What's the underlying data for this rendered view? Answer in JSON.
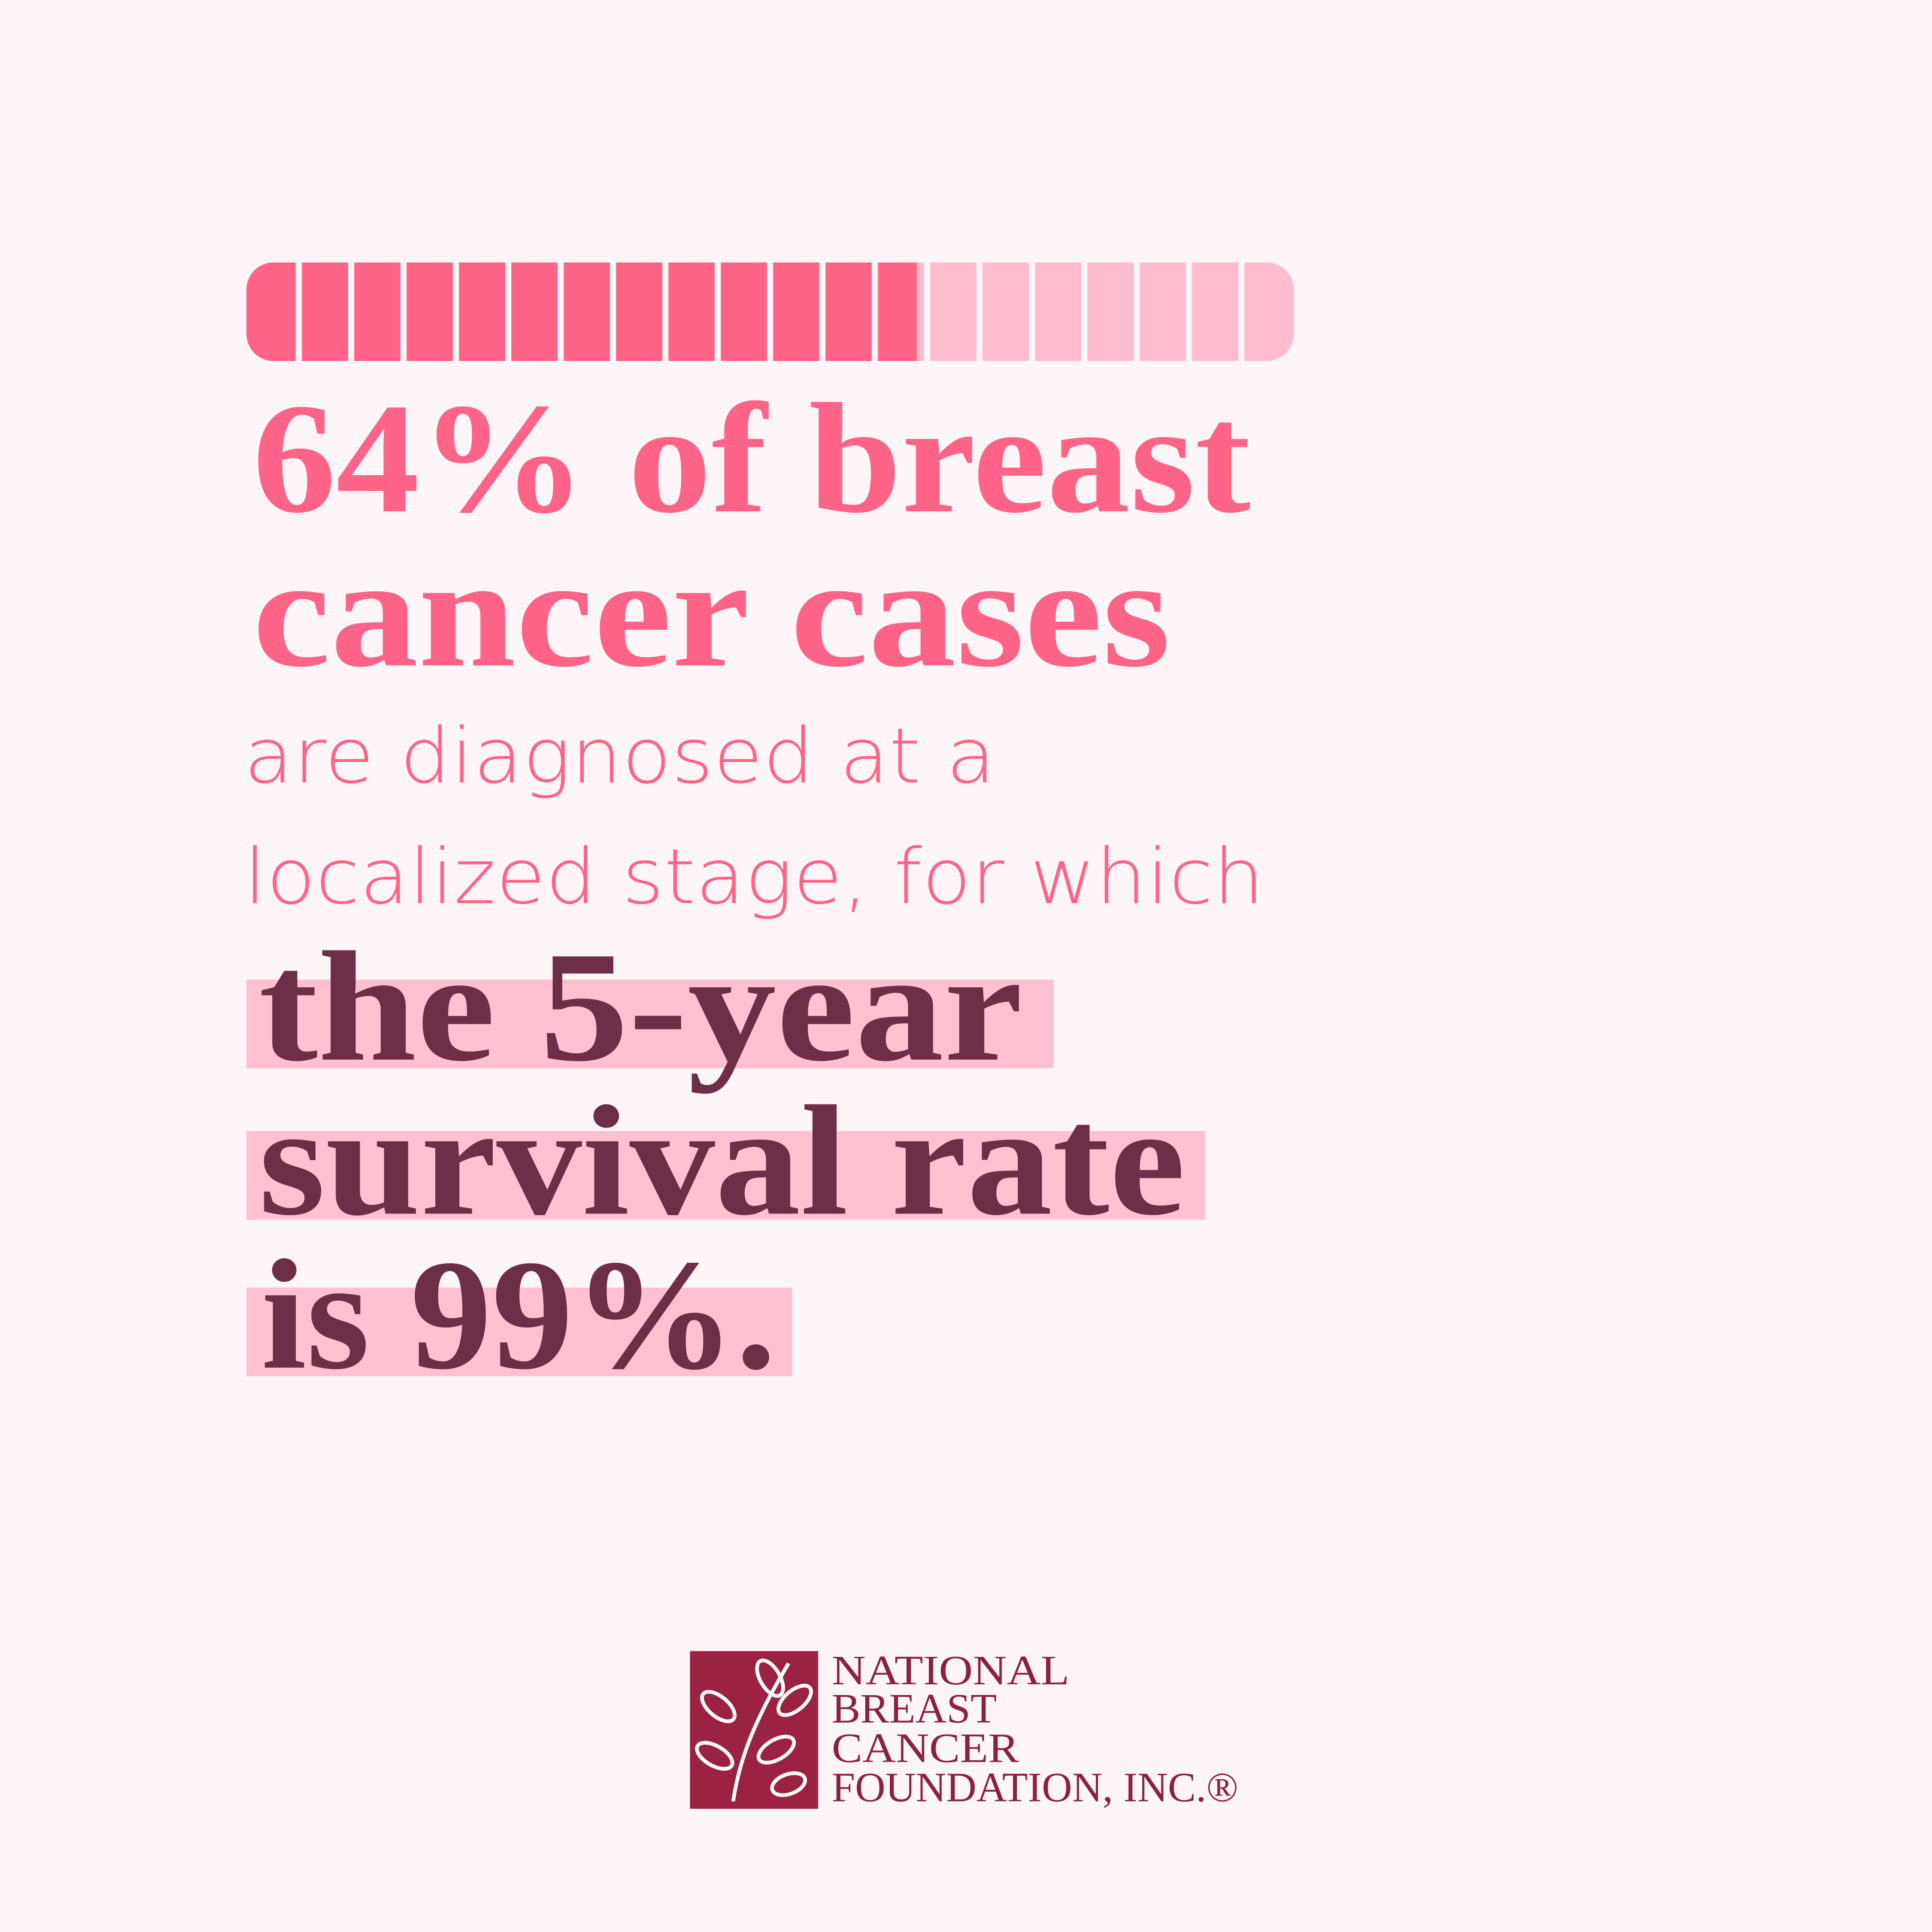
{
  "progress": {
    "value": 64,
    "range": [
      0,
      100
    ]
  },
  "headline": [
    "64% of breast",
    "cancer cases"
  ],
  "body": [
    "are diagnosed at a",
    "localized stage, for which"
  ],
  "highlight": [
    "the 5-year",
    "survival rate",
    "is 99%."
  ],
  "logo": {
    "lines": [
      "NATIONAL",
      "BREAST",
      "CANCER",
      "FOUNDATION, INC.®"
    ]
  }
}
